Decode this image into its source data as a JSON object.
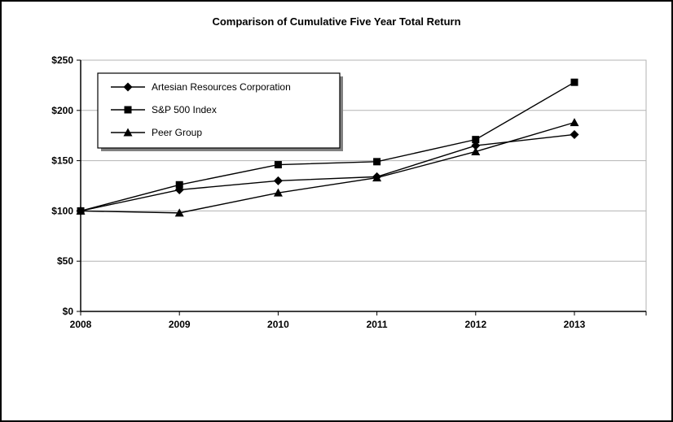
{
  "chart_data": {
    "type": "line",
    "title": "Comparison of Cumulative Five Year Total Return",
    "x": [
      "2008",
      "2009",
      "2010",
      "2011",
      "2012",
      "2013"
    ],
    "series": [
      {
        "name": "Artesian Resources Corporation",
        "marker": "diamond",
        "values": [
          100,
          121,
          130,
          134,
          165,
          176
        ]
      },
      {
        "name": "S&P 500 Index",
        "marker": "square",
        "values": [
          100,
          126,
          146,
          149,
          171,
          228
        ]
      },
      {
        "name": "Peer Group",
        "marker": "triangle",
        "values": [
          100,
          98,
          118,
          133,
          159,
          188
        ]
      }
    ],
    "ylim": [
      0,
      250
    ],
    "yticks": [
      0,
      50,
      100,
      150,
      200,
      250
    ],
    "ytick_labels": [
      "$0",
      "$50",
      "$100",
      "$150",
      "$200",
      "$250"
    ],
    "xlabel": "",
    "ylabel": "",
    "grid": "horizontal",
    "legend_position": "top-left",
    "colors": {
      "line": "#000000",
      "grid": "#b3b3b3",
      "plot_border": "#b3b3b3",
      "axis": "#000000",
      "background": "#ffffff",
      "legend_shadow": "#808080"
    }
  }
}
